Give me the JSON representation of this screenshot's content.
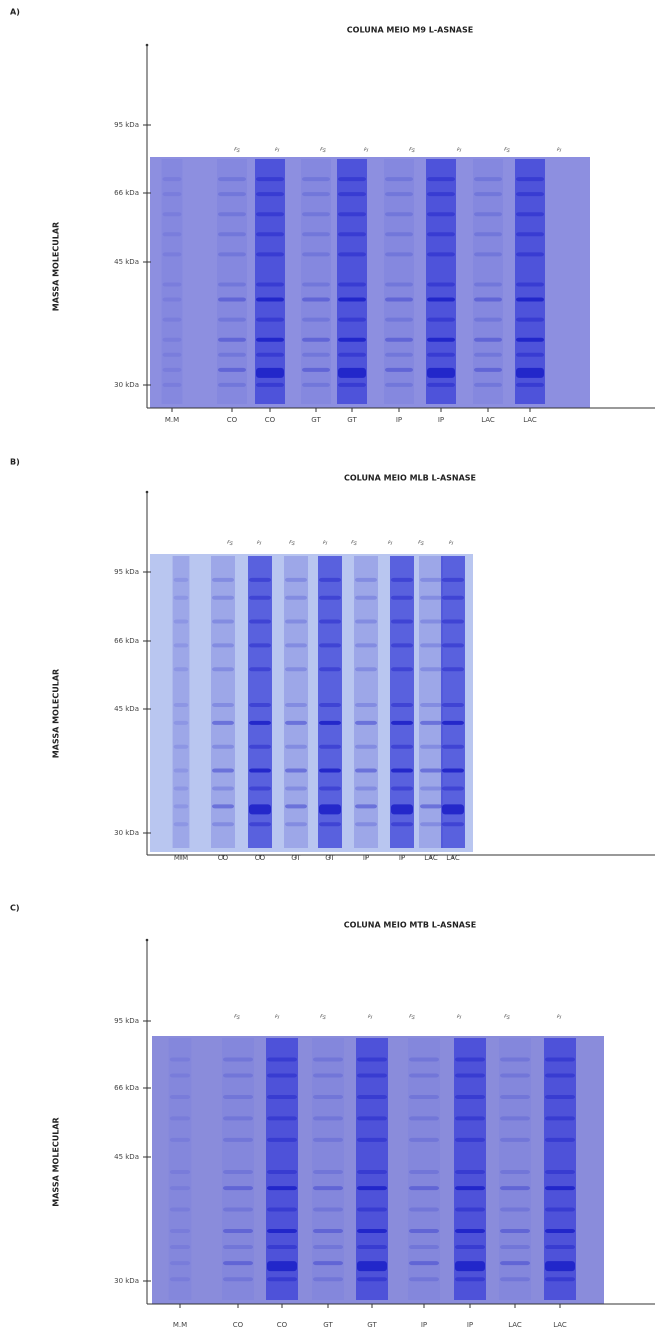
{
  "panels": [
    {
      "label": "A)",
      "title": "COLUNA  MEIO M9  L-ASNASE",
      "ylabel": "MASSA MOLECULAR",
      "yticks": [
        "95 kDa",
        "66 kDa",
        "45 kDa",
        "30 kDa"
      ],
      "top_labels": [
        "FS",
        "FI",
        "FS",
        "FI",
        "FS",
        "FI",
        "FS",
        "FI"
      ],
      "lanes": [
        "M.M",
        "CO",
        "CO",
        "GT",
        "GT",
        "IP",
        "IP",
        "LAC",
        "LAC"
      ]
    },
    {
      "label": "B)",
      "title": "COLUNA  MEIO MLB  L-ASNASE",
      "ylabel": "MASSA MOLECULAR",
      "yticks": [
        "95 kDa",
        "66 kDa",
        "45 kDa",
        "30 kDa"
      ],
      "top_labels": [
        "FS",
        "FI",
        "FS",
        "FI",
        "FS",
        "FI",
        "FS",
        "FI"
      ],
      "lanes": [
        "M.M",
        "CO",
        "CO",
        "GT",
        "GT",
        "IP",
        "IP",
        "LAC",
        "LAC"
      ]
    },
    {
      "label": "C)",
      "title": "COLUNA  MEIO MTB  L-ASNASE",
      "ylabel": "MASSA MOLECULAR",
      "yticks": [
        "95 kDa",
        "66 kDa",
        "45 kDa",
        "30 kDa"
      ],
      "top_labels": [
        "FS",
        "FI",
        "FS",
        "FI",
        "FS",
        "FI",
        "FS",
        "FI"
      ],
      "lanes": [
        "M.M",
        "CO",
        "CO",
        "GT",
        "GT",
        "IP",
        "IP",
        "LAC",
        "LAC"
      ]
    }
  ]
}
